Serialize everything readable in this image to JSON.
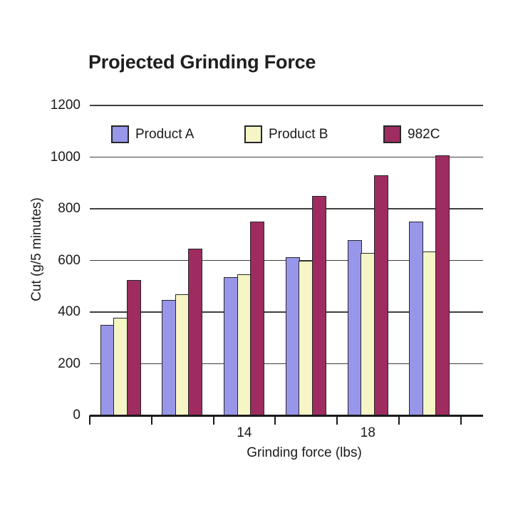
{
  "title": "Projected Grinding Force",
  "colors": {
    "background": "#ffffff",
    "text": "#1a1a1a",
    "grid": "#3f3f3f",
    "axis": "#1a1a1a",
    "bar_border": "#26262a",
    "product_a": "#9896e8",
    "product_b": "#f5f5c6",
    "c982": "#9e2c60"
  },
  "chart_data": {
    "type": "bar",
    "title": "Projected Grinding Force",
    "xlabel": "Grinding force (lbs)",
    "ylabel": "Cut (g/5 minutes)",
    "ylim": [
      0,
      1200
    ],
    "yticks": [
      0,
      200,
      400,
      600,
      800,
      1000,
      1200
    ],
    "grid": "horizontal",
    "legend_position": "top-inside",
    "categories": [
      "",
      "",
      "14",
      "",
      "18",
      ""
    ],
    "visible_x_tick_labels": [
      "14",
      "18"
    ],
    "series": [
      {
        "name": "Product A",
        "color": "#9896e8",
        "values": [
          350,
          446,
          534,
          613,
          680,
          750
        ]
      },
      {
        "name": "Product B",
        "color": "#f5f5c6",
        "values": [
          378,
          470,
          545,
          598,
          628,
          635
        ]
      },
      {
        "name": "982C",
        "color": "#9e2c60",
        "values": [
          524,
          645,
          751,
          850,
          931,
          1008
        ]
      }
    ]
  }
}
